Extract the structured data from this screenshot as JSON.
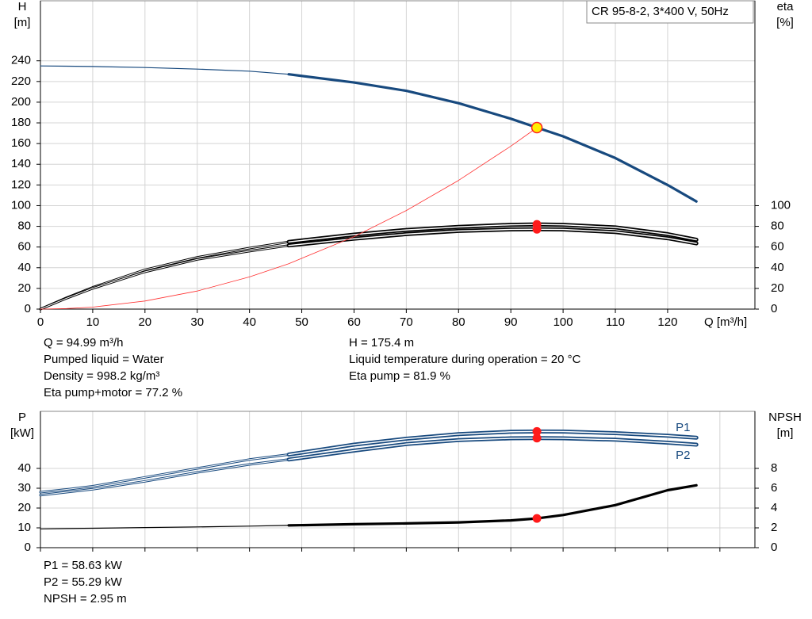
{
  "chart_data": [
    {
      "type": "line",
      "title": "CR 95-8-2, 3*400 V, 50Hz",
      "ylabel": [
        "H",
        "[m]"
      ],
      "y2label": [
        "eta",
        "[%]"
      ],
      "xlabel": "Q [m³/h]",
      "xlim": [
        0,
        136.7
      ],
      "xticks": [
        0,
        10,
        20,
        30,
        40,
        50,
        60,
        70,
        80,
        90,
        100,
        110,
        120
      ],
      "ylim": [
        0,
        298
      ],
      "yticks": [
        0,
        20,
        40,
        60,
        80,
        100,
        120,
        140,
        160,
        180,
        200,
        220,
        240
      ],
      "y2lim": [
        0,
        298
      ],
      "y2ticks": [
        0,
        20,
        40,
        60,
        80,
        100
      ],
      "grid": true,
      "operating_range": [
        47.5,
        125.5
      ],
      "x": [
        0,
        5,
        10,
        20,
        30,
        40,
        47.5,
        60,
        70,
        80,
        90,
        95,
        100,
        110,
        120,
        125.5
      ],
      "series": [
        {
          "color": "#17497e",
          "style": "single",
          "values": [
            235,
            234.8,
            234.5,
            233.5,
            232,
            230,
            227,
            219,
            211,
            199,
            184,
            175.4,
            167,
            146,
            120,
            104
          ]
        },
        {
          "color": "#000000",
          "style": "double",
          "axis": "y2",
          "values": [
            0,
            11,
            21,
            38,
            50,
            59,
            65,
            72,
            76.5,
            79.5,
            81.5,
            81.9,
            81.5,
            79,
            72.5,
            67
          ]
        },
        {
          "color": "#000000",
          "style": "double",
          "axis": "y2",
          "values": [
            0,
            10.5,
            20,
            36,
            48,
            56,
            61.5,
            68,
            72.5,
            75.5,
            77,
            77.2,
            77,
            74.5,
            68.5,
            63.5
          ]
        },
        {
          "color": "#ff3030",
          "style": "hair",
          "values": [
            0,
            0.5,
            1.9,
            7.8,
            17.5,
            31.1,
            43.9,
            70,
            95.3,
            124.4,
            157.5,
            175.4,
            null,
            null,
            null,
            null
          ]
        }
      ],
      "duty_point": {
        "q": 94.99,
        "h": 175.4,
        "eta_pump": 81.9,
        "eta_total": 77.2
      },
      "info_left": [
        "Q = 94.99 m³/h",
        "Pumped liquid = Water",
        "Density = 998.2 kg/m³",
        "Eta pump+motor = 77.2 %"
      ],
      "info_right": [
        "H = 175.4 m",
        "Liquid temperature during operation = 20 °C",
        "Eta pump = 81.9 %"
      ]
    },
    {
      "type": "line",
      "ylabel": [
        "P",
        "[kW]"
      ],
      "y2label": [
        "NPSH",
        "[m]"
      ],
      "xlim": [
        0,
        136.7
      ],
      "xticks": [
        0,
        10,
        20,
        30,
        40,
        50,
        60,
        70,
        80,
        90,
        100,
        110,
        120,
        130
      ],
      "xtick_labels": false,
      "ylim": [
        0,
        68.8
      ],
      "yticks": [
        0,
        10,
        20,
        30,
        40
      ],
      "y2lim": [
        0,
        13.76
      ],
      "y2ticks": [
        0,
        2,
        4,
        6,
        8
      ],
      "grid": true,
      "operating_range": [
        47.5,
        125.5
      ],
      "x": [
        0,
        5,
        10,
        20,
        30,
        40,
        47.5,
        60,
        70,
        80,
        90,
        95,
        100,
        110,
        120,
        125.5
      ],
      "series": [
        {
          "name": "P1",
          "color": "#17497e",
          "style": "double",
          "values": [
            28,
            29.4,
            31,
            35.5,
            40,
            44.5,
            47,
            52,
            55,
            57.3,
            58.5,
            58.63,
            58.6,
            57.8,
            56.5,
            55.5
          ]
        },
        {
          "name": "P2",
          "color": "#17497e",
          "style": "double",
          "values": [
            26.5,
            28,
            29.5,
            33.5,
            38,
            42,
            44.5,
            49,
            52.3,
            54.3,
            55.2,
            55.29,
            55.2,
            54.5,
            53,
            52
          ]
        },
        {
          "color": "#000000",
          "style": "single",
          "axis": "y2",
          "values": [
            1.9,
            1.93,
            1.96,
            2.03,
            2.1,
            2.18,
            2.25,
            2.37,
            2.45,
            2.55,
            2.75,
            2.95,
            3.3,
            4.3,
            5.8,
            6.3
          ]
        }
      ],
      "duty_point": {
        "q": 94.99,
        "p1": 58.63,
        "p2": 55.29,
        "npsh": 2.95
      },
      "info_left": [
        "P1 = 58.63 kW",
        "P2 = 55.29 kW",
        "NPSH = 2.95 m"
      ]
    }
  ]
}
